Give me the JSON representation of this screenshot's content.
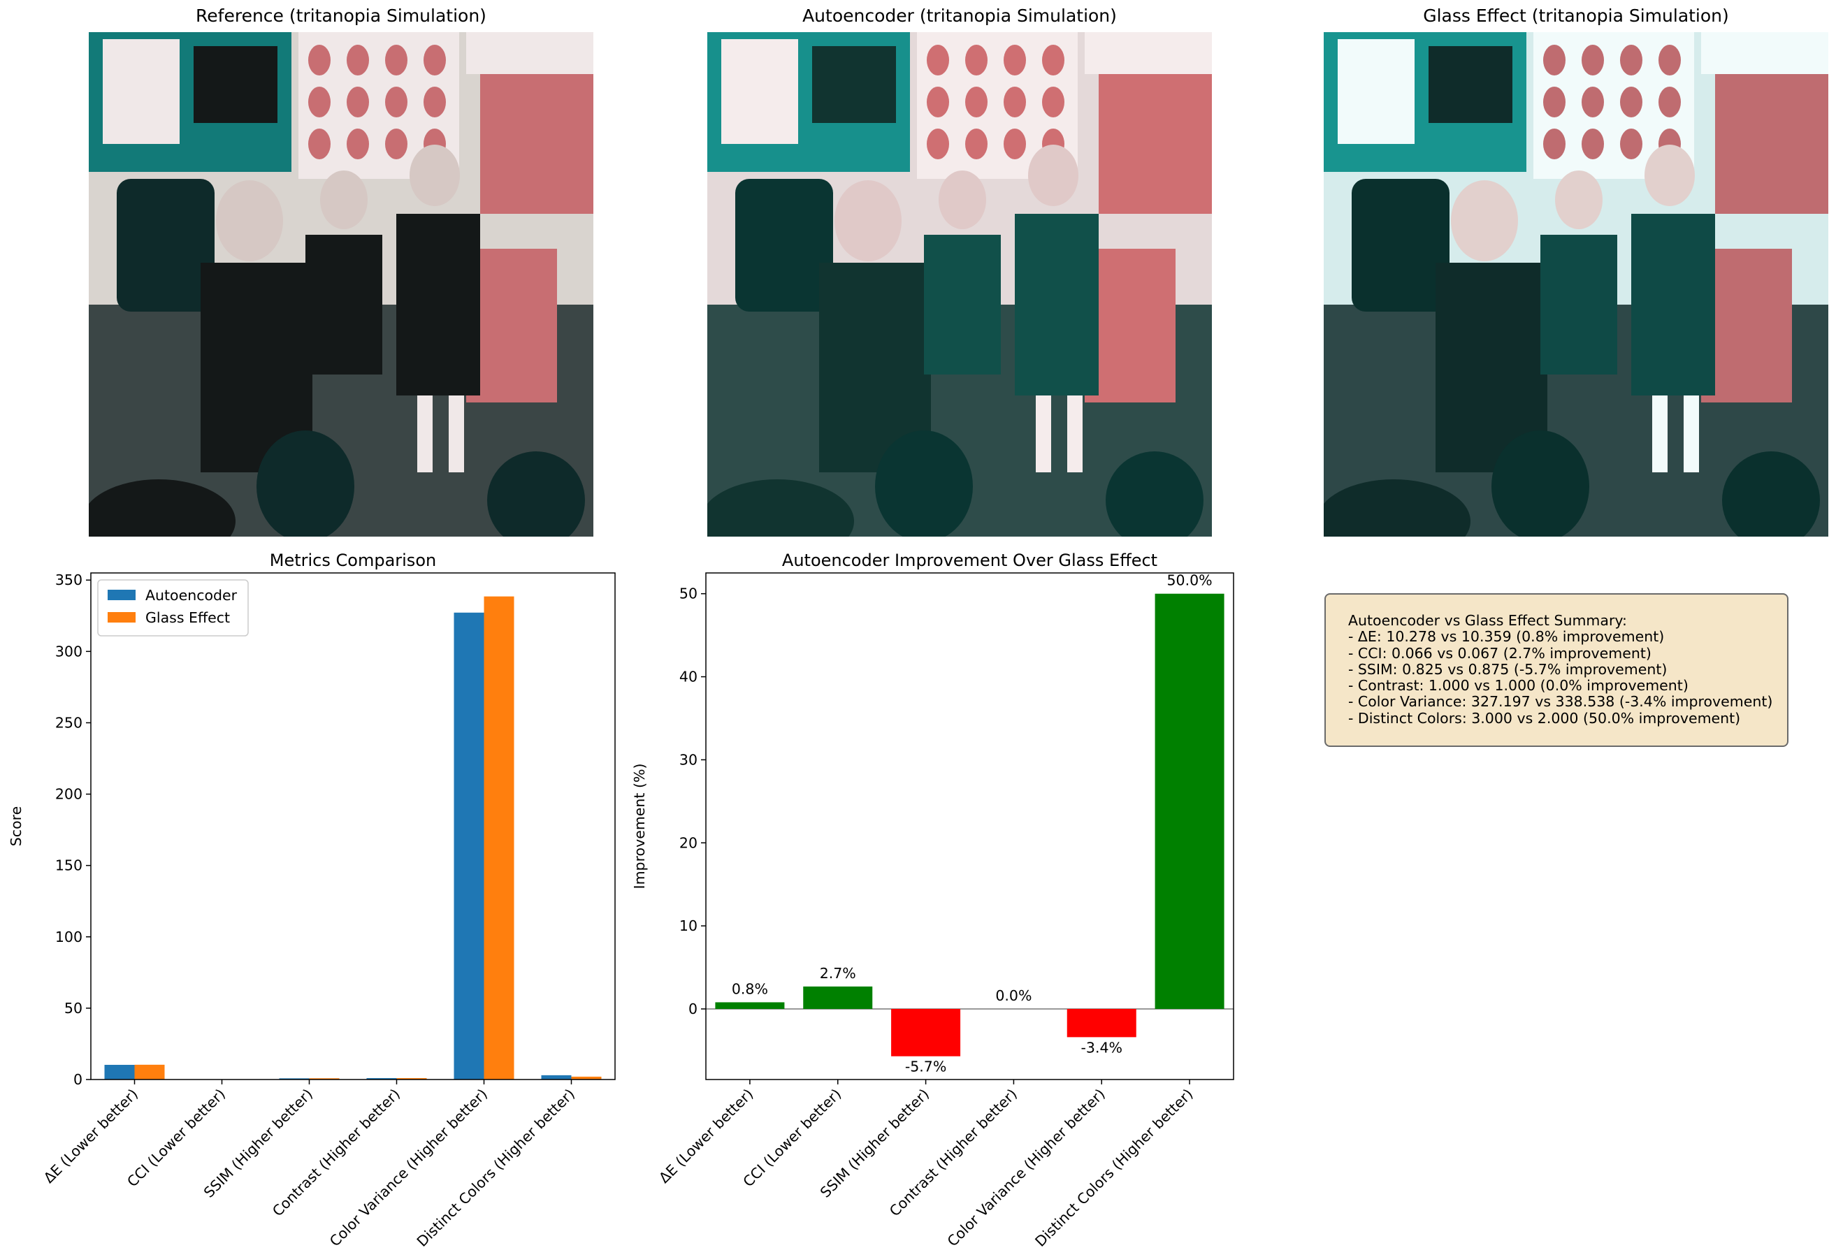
{
  "photos": [
    {
      "title": "Reference (tritanopia Simulation)",
      "tone": "reference"
    },
    {
      "title": "Autoencoder (tritanopia Simulation)",
      "tone": "autoencoder"
    },
    {
      "title": "Glass Effect (tritanopia Simulation)",
      "tone": "glass"
    }
  ],
  "colors": {
    "autoencoder": "#1f77b4",
    "glass": "#ff7f0e",
    "positive": "#008000",
    "negative": "#ff0000",
    "summary_bg": "#f5e6c8"
  },
  "chart_data": [
    {
      "type": "bar",
      "title": "Metrics Comparison",
      "xlabel": "",
      "ylabel": "Score",
      "ylim": [
        0,
        355
      ],
      "yticks": [
        0,
        50,
        100,
        150,
        200,
        250,
        300,
        350
      ],
      "categories": [
        "ΔE (Lower better)",
        "CCI (Lower better)",
        "SSIM (Higher better)",
        "Contrast (Higher better)",
        "Color Variance (Higher better)",
        "Distinct Colors (Higher better)"
      ],
      "series": [
        {
          "name": "Autoencoder",
          "values": [
            10.278,
            0.066,
            0.825,
            1.0,
            327.197,
            3.0
          ]
        },
        {
          "name": "Glass Effect",
          "values": [
            10.359,
            0.067,
            0.875,
            1.0,
            338.538,
            2.0
          ]
        }
      ],
      "legend": "top-left"
    },
    {
      "type": "bar",
      "title": "Autoencoder Improvement Over Glass Effect",
      "xlabel": "",
      "ylabel": "Improvement (%)",
      "ylim": [
        -8.5,
        52.5
      ],
      "yticks": [
        0,
        10,
        20,
        30,
        40,
        50
      ],
      "categories": [
        "ΔE (Lower better)",
        "CCI (Lower better)",
        "SSIM (Higher better)",
        "Contrast (Higher better)",
        "Color Variance (Higher better)",
        "Distinct Colors (Higher better)"
      ],
      "values": [
        0.8,
        2.7,
        -5.7,
        0.0,
        -3.4,
        50.0
      ],
      "labels": [
        "0.8%",
        "2.7%",
        "-5.7%",
        "0.0%",
        "-3.4%",
        "50.0%"
      ],
      "zero_line": true
    }
  ],
  "summary": {
    "lines": [
      "Autoencoder vs Glass Effect Summary:",
      "- ΔE: 10.278 vs 10.359 (0.8% improvement)",
      "- CCI: 0.066 vs 0.067 (2.7% improvement)",
      "- SSIM: 0.825 vs 0.875 (-5.7% improvement)",
      "- Contrast: 1.000 vs 1.000 (0.0% improvement)",
      "- Color Variance: 327.197 vs 338.538 (-3.4% improvement)",
      "- Distinct Colors: 3.000 vs 2.000 (50.0% improvement)"
    ]
  }
}
